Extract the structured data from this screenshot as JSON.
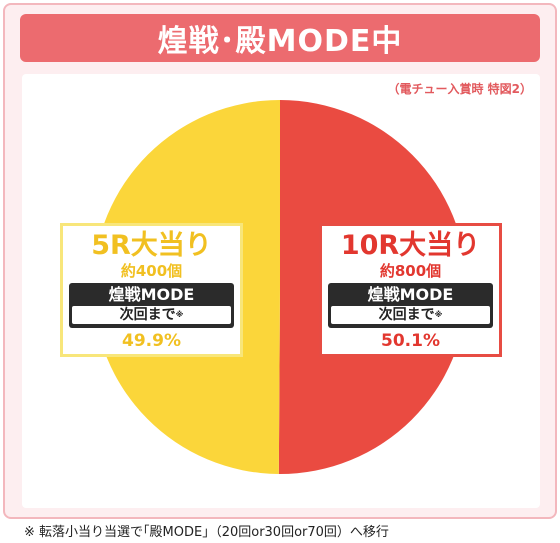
{
  "header": {
    "title": "煌戦･殿MODE中"
  },
  "subnote": "（電チュー入賞時 特図2）",
  "footnote": "※ 転落小当り当選で｢殿MODE｣（20回or30回or70回）へ移行",
  "chart_data": {
    "type": "pie",
    "title": "煌戦･殿MODE中",
    "subtitle": "（電チュー入賞時 特図2）",
    "slices": [
      {
        "label": "5R大当り",
        "count_label": "約400個",
        "mode": "煌戦MODE",
        "until": "次回まで",
        "mark": "※",
        "value": 49.9,
        "value_label": "49.9%",
        "color": "#fbd63a"
      },
      {
        "label": "10R大当り",
        "count_label": "約800個",
        "mode": "煌戦MODE",
        "until": "次回まで",
        "mark": "※",
        "value": 50.1,
        "value_label": "50.1%",
        "color": "#ea4b41"
      }
    ]
  }
}
